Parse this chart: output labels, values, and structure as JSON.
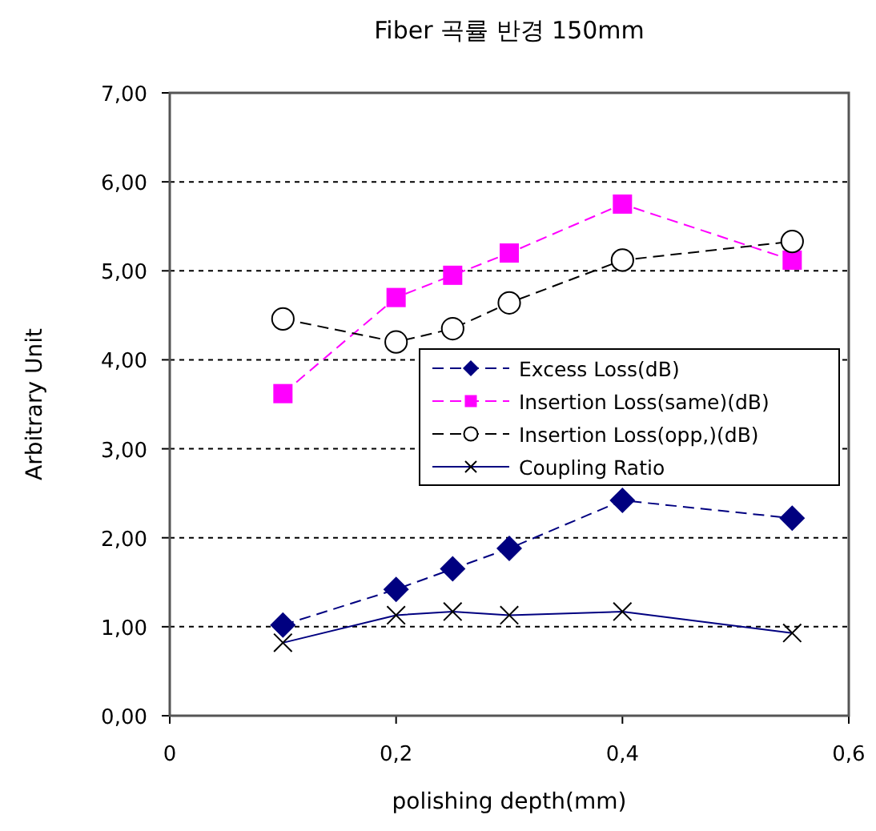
{
  "chart_data": {
    "type": "line",
    "title": "Fiber 곡률 반경 150mm",
    "xlabel": "polishing depth(mm)",
    "ylabel": "Arbitrary Unit",
    "x": [
      0.1,
      0.2,
      0.25,
      0.3,
      0.4,
      0.55
    ],
    "series": [
      {
        "name": "Excess Loss(dB)",
        "color": "#000080",
        "marker": "diamond",
        "line_style": "dashed",
        "values": [
          1.02,
          1.42,
          1.65,
          1.88,
          2.42,
          2.22
        ]
      },
      {
        "name": "Insertion Loss(same)(dB)",
        "color": "#ff00ff",
        "marker": "square",
        "line_style": "dashed",
        "values": [
          3.62,
          4.7,
          4.95,
          5.2,
          5.75,
          5.12
        ]
      },
      {
        "name": "Insertion Loss(opp,)(dB)",
        "color": "#000000",
        "marker": "circle",
        "line_style": "dashed",
        "values": [
          4.46,
          4.2,
          4.35,
          4.64,
          5.12,
          5.33
        ]
      },
      {
        "name": "Coupling Ratio",
        "color": "#000080",
        "marker": "cross",
        "line_style": "solid",
        "values": [
          0.82,
          1.13,
          1.17,
          1.13,
          1.17,
          0.93
        ]
      }
    ],
    "xlim": [
      0,
      0.6
    ],
    "xticks": [
      0,
      {
        "value": 0.2,
        "label": "0,2"
      },
      {
        "value": 0.4,
        "label": "0,4"
      },
      {
        "value": 0.6,
        "label": "0,6"
      }
    ],
    "ylim": [
      0,
      7
    ],
    "yticks": [
      {
        "value": 0,
        "label": "0,00"
      },
      {
        "value": 1,
        "label": "1,00"
      },
      {
        "value": 2,
        "label": "2,00"
      },
      {
        "value": 3,
        "label": "3,00"
      },
      {
        "value": 4,
        "label": "4,00"
      },
      {
        "value": 5,
        "label": "5,00"
      },
      {
        "value": 6,
        "label": "6,00"
      },
      {
        "value": 7,
        "label": "7,00"
      }
    ],
    "grid": "y",
    "legend": "right"
  }
}
